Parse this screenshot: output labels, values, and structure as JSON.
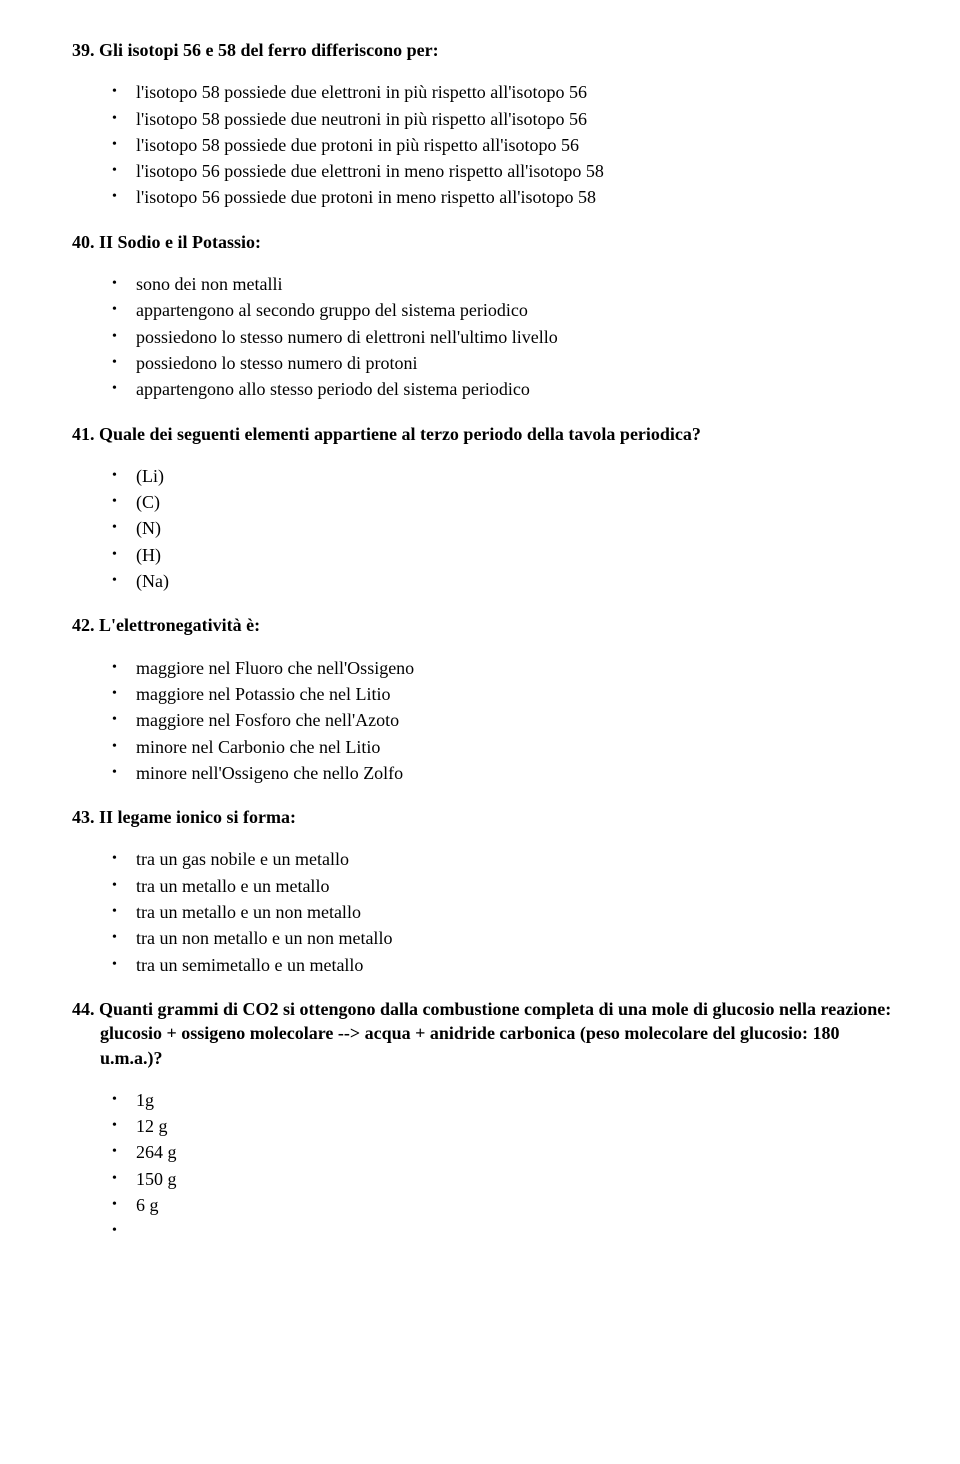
{
  "questions": [
    {
      "number": "39.",
      "title": "Gli isotopi 56 e 58 del ferro differiscono per:",
      "options": [
        "l'isotopo 58 possiede due elettroni in più rispetto all'isotopo 56",
        "l'isotopo 58 possiede due neutroni in più rispetto all'isotopo 56",
        "l'isotopo 58 possiede due protoni in più rispetto all'isotopo 56",
        "l'isotopo 56 possiede due elettroni in meno rispetto all'isotopo 58",
        "l'isotopo 56 possiede due protoni in meno rispetto all'isotopo 58"
      ]
    },
    {
      "number": "40.",
      "title": "II Sodio e il Potassio:",
      "options": [
        "sono dei non metalli",
        "appartengono al secondo gruppo del sistema periodico",
        "possiedono lo stesso numero di elettroni nell'ultimo livello",
        "possiedono lo stesso numero di protoni",
        "appartengono allo stesso periodo del sistema periodico"
      ]
    },
    {
      "number": "41.",
      "title": "Quale dei seguenti elementi appartiene al terzo periodo della tavola periodica?",
      "options": [
        "(Li)",
        "(C)",
        "(N)",
        "(H)",
        "(Na)"
      ]
    },
    {
      "number": "42.",
      "title": "L'elettronegatività è:",
      "options": [
        "maggiore nel Fluoro che nell'Ossigeno",
        "maggiore nel Potassio che nel Litio",
        "maggiore nel Fosforo che nell'Azoto",
        "minore nel Carbonio che nel Litio",
        "minore nell'Ossigeno che nello Zolfo"
      ]
    },
    {
      "number": "43.",
      "title": "II legame ionico si forma:",
      "options": [
        "tra un gas nobile e un metallo",
        "tra un metallo e un metallo",
        "tra un metallo e un non metallo",
        "tra un non metallo e un non metallo",
        "tra un semimetallo e un metallo"
      ]
    },
    {
      "number": "44.",
      "title": " Quanti grammi di CO2 si ottengono dalla combustione completa di una mole di glucosio nella reazione: glucosio + ossigeno molecolare --> acqua + anidride carbonica (peso molecolare del glucosio: 180 u.m.a.)?",
      "options": [
        "1g",
        "12 g",
        "264 g",
        "150 g",
        "6 g",
        ""
      ]
    }
  ]
}
